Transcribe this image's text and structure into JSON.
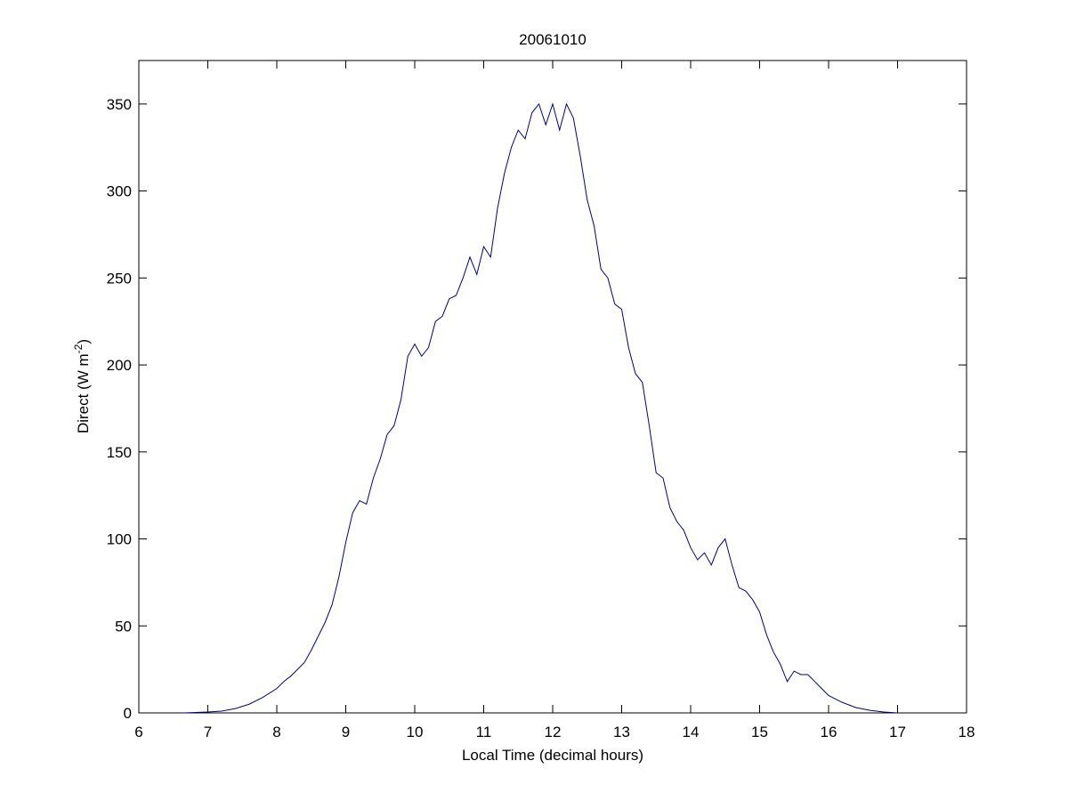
{
  "chart_data": {
    "type": "line",
    "title": "20061010",
    "xlabel": "Local Time (decimal hours)",
    "ylabel": {
      "text": "Direct (W m",
      "superscript": "-2",
      "suffix": ")"
    },
    "x": [
      6.65,
      7.0,
      7.2,
      7.4,
      7.6,
      7.8,
      8.0,
      8.1,
      8.2,
      8.3,
      8.4,
      8.5,
      8.6,
      8.7,
      8.8,
      8.9,
      9.0,
      9.1,
      9.2,
      9.3,
      9.4,
      9.5,
      9.6,
      9.7,
      9.8,
      9.9,
      10.0,
      10.1,
      10.2,
      10.3,
      10.4,
      10.5,
      10.6,
      10.7,
      10.8,
      10.9,
      11.0,
      11.1,
      11.2,
      11.3,
      11.4,
      11.5,
      11.6,
      11.7,
      11.8,
      11.9,
      12.0,
      12.1,
      12.2,
      12.3,
      12.4,
      12.5,
      12.6,
      12.7,
      12.8,
      12.9,
      13.0,
      13.1,
      13.2,
      13.3,
      13.4,
      13.5,
      13.6,
      13.7,
      13.8,
      13.9,
      14.0,
      14.1,
      14.2,
      14.3,
      14.4,
      14.5,
      14.6,
      14.7,
      14.8,
      14.9,
      15.0,
      15.1,
      15.2,
      15.3,
      15.4,
      15.5,
      15.6,
      15.7,
      15.8,
      15.9,
      16.0,
      16.2,
      16.4,
      16.6,
      16.8,
      17.0
    ],
    "values": [
      0,
      0.5,
      1,
      2.5,
      5,
      9,
      14,
      18,
      21,
      25,
      29,
      36,
      44,
      52,
      62,
      78,
      98,
      115,
      122,
      120,
      135,
      146,
      160,
      165,
      180,
      205,
      212,
      205,
      210,
      225,
      228,
      238,
      240,
      250,
      262,
      252,
      268,
      262,
      290,
      310,
      325,
      335,
      330,
      345,
      350,
      338,
      350,
      335,
      350,
      342,
      320,
      295,
      280,
      255,
      250,
      235,
      232,
      210,
      195,
      190,
      165,
      138,
      135,
      118,
      110,
      105,
      95,
      88,
      92,
      85,
      95,
      100,
      85,
      72,
      70,
      65,
      58,
      45,
      35,
      28,
      18,
      24,
      22,
      22,
      18,
      14,
      10,
      6,
      3,
      1.5,
      0.5,
      0
    ],
    "color": "#00008b",
    "xlim": [
      6,
      18
    ],
    "xticks": [
      6,
      7,
      8,
      9,
      10,
      11,
      12,
      13,
      14,
      15,
      16,
      17,
      18
    ],
    "ylim": [
      0,
      375
    ],
    "yticks": [
      0,
      50,
      100,
      150,
      200,
      250,
      300,
      350
    ]
  }
}
